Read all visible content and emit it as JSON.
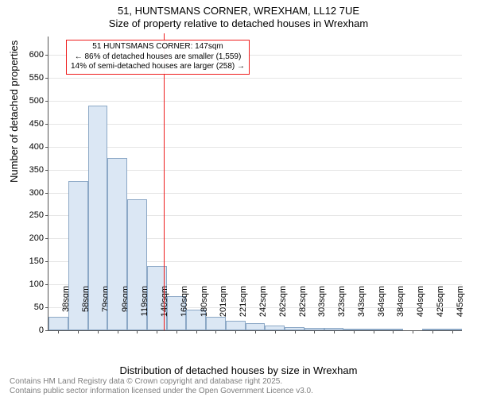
{
  "title_line1": "51, HUNTSMANS CORNER, WREXHAM, LL12 7UE",
  "title_line2": "Size of property relative to detached houses in Wrexham",
  "ylabel": "Number of detached properties",
  "xlabel": "Distribution of detached houses by size in Wrexham",
  "footnote_line1": "Contains HM Land Registry data © Crown copyright and database right 2025.",
  "footnote_line2": "Contains public sector information licensed under the Open Government Licence v3.0.",
  "annotation": {
    "line1": "51 HUNTSMANS CORNER: 147sqm",
    "line2": "← 86% of detached houses are smaller (1,559)",
    "line3": "14% of semi-detached houses are larger (258) →"
  },
  "chart": {
    "type": "histogram",
    "ylim": [
      0,
      640
    ],
    "ytick_step": 50,
    "ytick_max": 600,
    "marker_x": 147,
    "x_start": 30,
    "x_step": 20,
    "n_bars": 21,
    "bar_fill": "#dbe7f4",
    "bar_border": "#8ca8c6",
    "grid_color": "#e5e5e5",
    "marker_color": "#ee1c1c",
    "background_color": "#ffffff",
    "xtick_labels": [
      "38sqm",
      "58sqm",
      "79sqm",
      "99sqm",
      "119sqm",
      "140sqm",
      "160sqm",
      "180sqm",
      "201sqm",
      "221sqm",
      "242sqm",
      "262sqm",
      "282sqm",
      "303sqm",
      "323sqm",
      "343sqm",
      "364sqm",
      "384sqm",
      "404sqm",
      "425sqm",
      "445sqm"
    ],
    "values": [
      30,
      325,
      490,
      375,
      285,
      140,
      75,
      45,
      30,
      20,
      15,
      10,
      7,
      6,
      5,
      4,
      3,
      2,
      0,
      2,
      2
    ]
  }
}
